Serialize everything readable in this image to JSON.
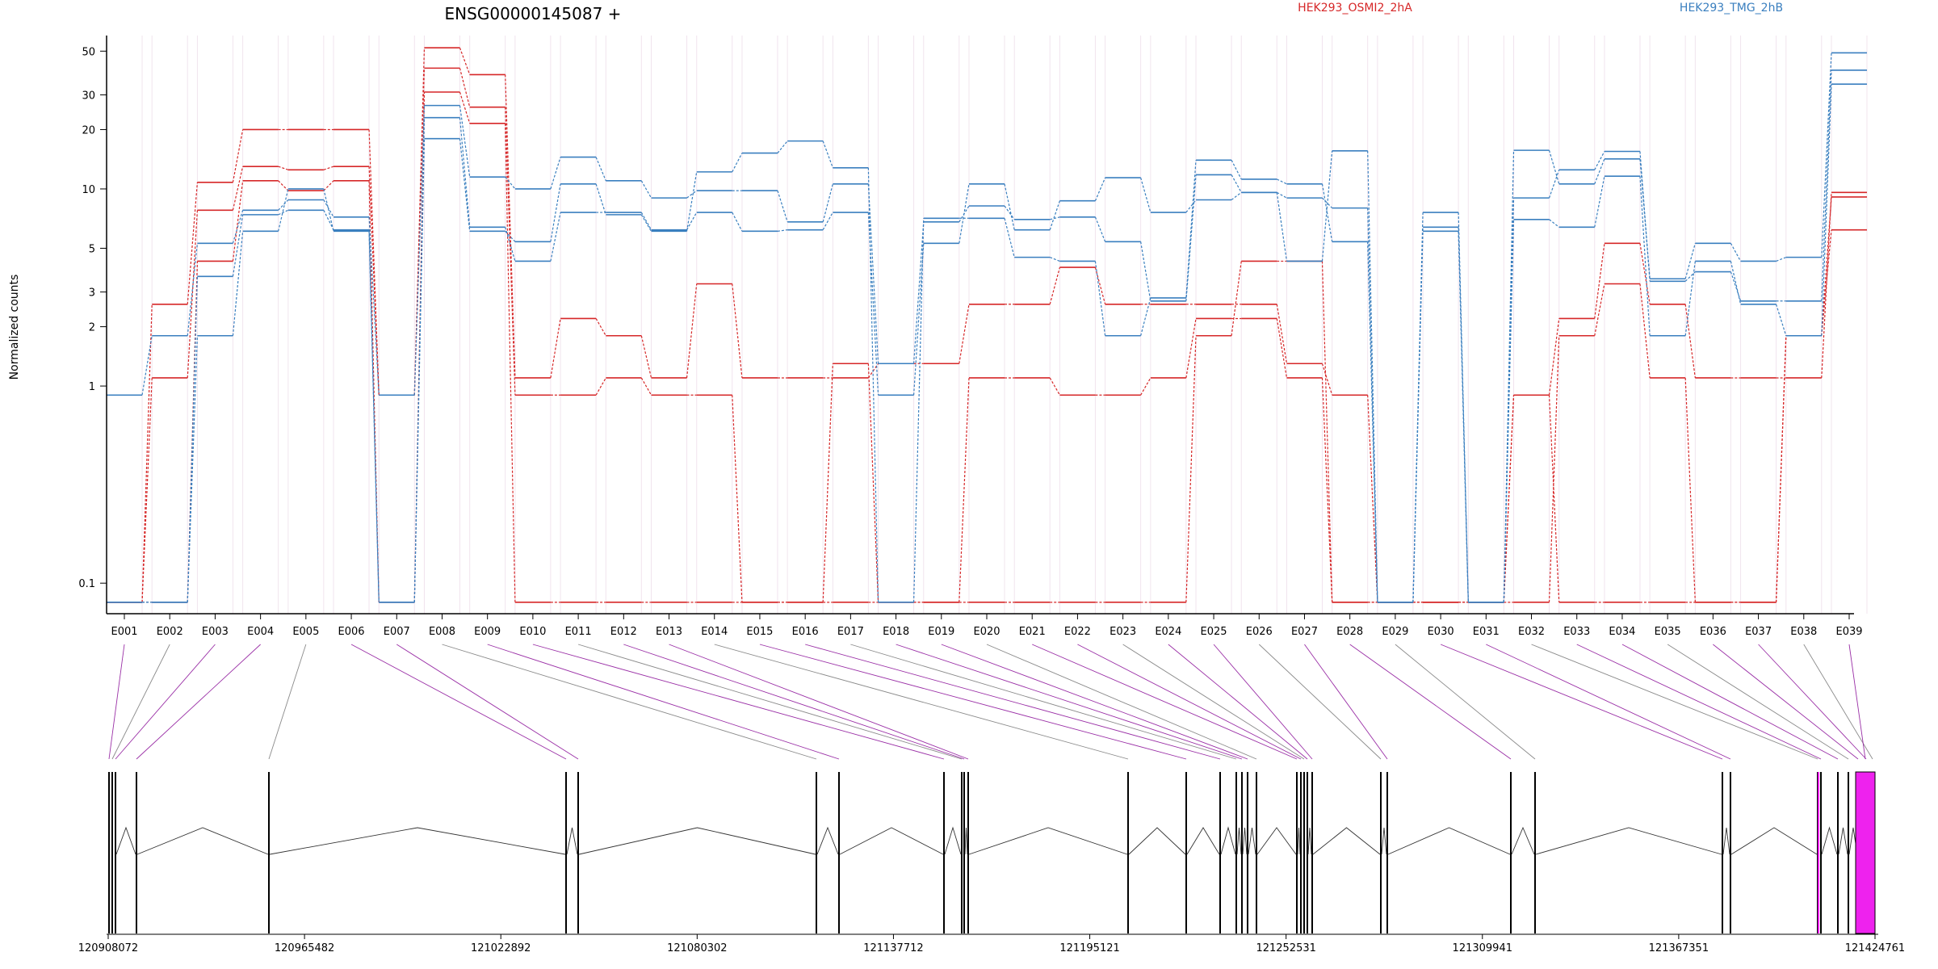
{
  "chart_data": {
    "type": "line",
    "title": "ENSG00000145087 +",
    "ylabel": "Normalized counts",
    "yscale": "log",
    "ylim": [
      0.07,
      60
    ],
    "yticks": [
      {
        "value": 0.1,
        "label": "0.1"
      },
      {
        "value": 1,
        "label": "1"
      },
      {
        "value": 2,
        "label": "2"
      },
      {
        "value": 3,
        "label": "3"
      },
      {
        "value": 5,
        "label": "5"
      },
      {
        "value": 10,
        "label": "10"
      },
      {
        "value": 20,
        "label": "20"
      },
      {
        "value": 30,
        "label": "30"
      },
      {
        "value": 50,
        "label": "50"
      }
    ],
    "legend": [
      {
        "label": "HEK293_OSMI2_2hA",
        "color": "#d62728"
      },
      {
        "label": "HEK293_TMG_2hB",
        "color": "#3a7fbf"
      }
    ],
    "categories": [
      "E001",
      "E002",
      "E003",
      "E004",
      "E005",
      "E006",
      "E007",
      "E008",
      "E009",
      "E010",
      "E011",
      "E012",
      "E013",
      "E014",
      "E015",
      "E016",
      "E017",
      "E018",
      "E019",
      "E020",
      "E021",
      "E022",
      "E023",
      "E024",
      "E025",
      "E026",
      "E027",
      "E028",
      "E029",
      "E030",
      "E031",
      "E032",
      "E033",
      "E034",
      "E035",
      "E036",
      "E037",
      "E038",
      "E039"
    ],
    "series": [
      {
        "color": "#d62728",
        "values": [
          0.08,
          2.6,
          10.8,
          20,
          20,
          20,
          0.9,
          52,
          38,
          1.1,
          2.2,
          1.8,
          1.1,
          3.3,
          1.1,
          1.1,
          1.1,
          1.3,
          1.3,
          2.6,
          2.6,
          4,
          2.6,
          2.6,
          2.6,
          2.6,
          1.3,
          0.9,
          0.08,
          0.08,
          0.08,
          0.9,
          2.2,
          5.3,
          2.6,
          1.1,
          1.1,
          1.1,
          9.6
        ]
      },
      {
        "color": "#d62728",
        "values": [
          0.08,
          1.1,
          7.8,
          13,
          12.5,
          13,
          0.9,
          41,
          26,
          0.9,
          0.9,
          1.1,
          0.9,
          0.9,
          0.08,
          0.08,
          0.08,
          0.08,
          0.08,
          1.1,
          1.1,
          0.9,
          0.9,
          1.1,
          2.2,
          2.2,
          1.1,
          0.08,
          0.08,
          0.08,
          0.08,
          0.08,
          1.8,
          3.3,
          1.1,
          0.08,
          0.08,
          1.8,
          9.1
        ]
      },
      {
        "color": "#d62728",
        "values": [
          0.08,
          0.08,
          4.3,
          11,
          9.8,
          11,
          0.08,
          31,
          21.5,
          0.08,
          0.08,
          0.08,
          0.08,
          0.08,
          0.08,
          0.08,
          1.3,
          0.08,
          0.08,
          0.08,
          0.08,
          0.08,
          0.08,
          0.08,
          1.8,
          4.3,
          4.3,
          0.08,
          0.08,
          0.08,
          0.08,
          0.9,
          0.08,
          0.08,
          0.08,
          0.08,
          0.08,
          1.8,
          6.2
        ]
      },
      {
        "color": "#3a7fbf",
        "values": [
          0.9,
          1.8,
          5.3,
          7.8,
          8.8,
          7.2,
          0.9,
          26.5,
          11.5,
          10,
          14.5,
          11,
          9,
          9.8,
          9.8,
          6.8,
          10.6,
          1.3,
          6.8,
          8.2,
          7,
          7.2,
          5.4,
          2.7,
          11.8,
          9.6,
          4.3,
          15.6,
          0.08,
          7.6,
          0.08,
          15.7,
          10.6,
          14.2,
          3.5,
          5.3,
          4.3,
          4.5,
          49
        ]
      },
      {
        "color": "#3a7fbf",
        "values": [
          0.08,
          0.08,
          3.6,
          7.4,
          7.8,
          6.2,
          0.08,
          23,
          6.4,
          4.3,
          7.6,
          7.6,
          6.2,
          7.6,
          6.1,
          6.2,
          7.6,
          0.9,
          5.3,
          10.6,
          6.2,
          8.7,
          11.4,
          7.6,
          8.8,
          9.6,
          9,
          8,
          0.08,
          6.4,
          0.08,
          9,
          12.5,
          15.5,
          3.4,
          3.8,
          2.7,
          2.7,
          40
        ]
      },
      {
        "color": "#3a7fbf",
        "values": [
          0.08,
          0.08,
          1.8,
          6.1,
          10,
          6.1,
          0.08,
          18,
          6.1,
          5.4,
          10.6,
          7.4,
          6.1,
          12.2,
          15.2,
          17.5,
          12.8,
          0.08,
          7.1,
          7.1,
          4.5,
          4.3,
          1.8,
          2.8,
          14,
          11.2,
          10.6,
          5.4,
          0.08,
          6.1,
          0.08,
          7,
          6.4,
          11.6,
          1.8,
          4.3,
          2.6,
          1.8,
          34
        ]
      }
    ],
    "genome_axis": {
      "ticks": [
        "120908072",
        "120965482",
        "121022892",
        "121080302",
        "121137712",
        "121195121",
        "121252531",
        "121309941",
        "121367351",
        "121424761"
      ]
    }
  }
}
